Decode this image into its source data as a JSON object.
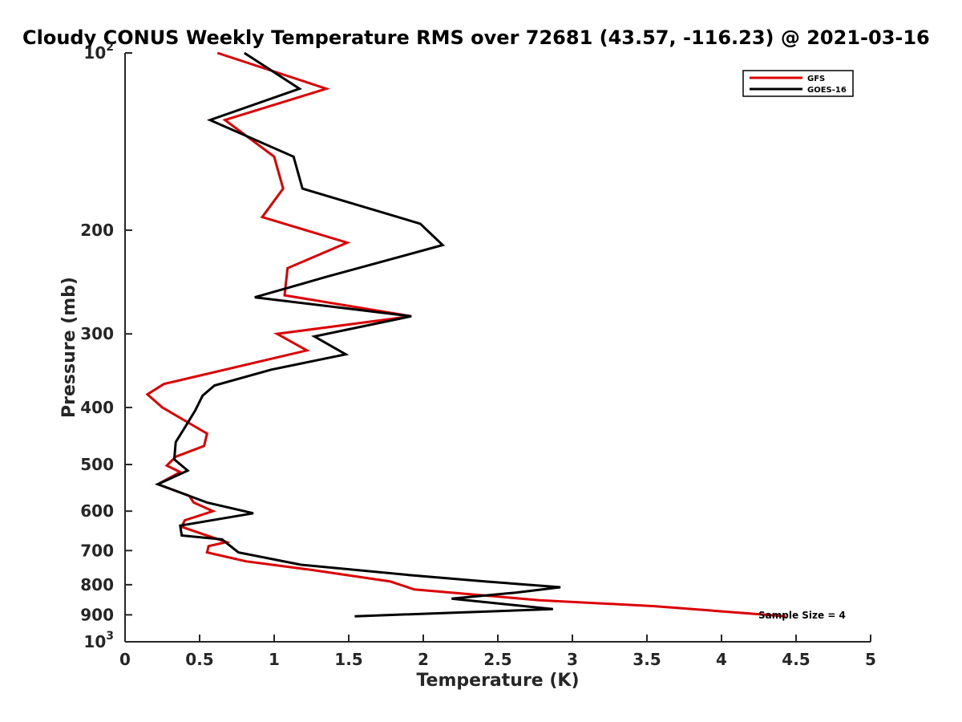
{
  "chart_data": {
    "type": "line",
    "title": "Cloudy CONUS Weekly Temperature RMS over 72681 (43.57, -116.23) @ 2021-03-16",
    "xlabel": "Temperature (K)",
    "ylabel": "Pressure (mb)",
    "xlim": [
      0,
      5
    ],
    "ylim": [
      100,
      1000
    ],
    "y_scale": "log",
    "y_reversed": true,
    "x_ticks": [
      "0",
      "0.5",
      "1",
      "1.5",
      "2",
      "2.5",
      "3",
      "3.5",
      "4",
      "4.5",
      "5"
    ],
    "y_ticks": [
      {
        "value": 100,
        "label": "10",
        "sup": "2"
      },
      {
        "value": 200,
        "label": "200"
      },
      {
        "value": 300,
        "label": "300"
      },
      {
        "value": 400,
        "label": "400"
      },
      {
        "value": 500,
        "label": "500"
      },
      {
        "value": 600,
        "label": "600"
      },
      {
        "value": 700,
        "label": "700"
      },
      {
        "value": 800,
        "label": "800"
      },
      {
        "value": 900,
        "label": "900"
      },
      {
        "value": 1000,
        "label": "10",
        "sup": "3"
      }
    ],
    "grid": false,
    "legend_position": "top-right",
    "series": [
      {
        "name": "GFS",
        "color": "#dd0000",
        "points": [
          [
            0.62,
            100
          ],
          [
            1.35,
            115
          ],
          [
            0.67,
            130
          ],
          [
            1.0,
            150
          ],
          [
            1.06,
            170
          ],
          [
            0.92,
            190
          ],
          [
            1.49,
            210
          ],
          [
            1.09,
            232
          ],
          [
            1.07,
            258
          ],
          [
            1.92,
            280
          ],
          [
            1.02,
            300
          ],
          [
            1.22,
            320
          ],
          [
            0.26,
            365
          ],
          [
            0.15,
            380
          ],
          [
            0.25,
            400
          ],
          [
            0.55,
            443
          ],
          [
            0.53,
            465
          ],
          [
            0.34,
            485
          ],
          [
            0.28,
            502
          ],
          [
            0.37,
            515
          ],
          [
            0.22,
            540
          ],
          [
            0.43,
            565
          ],
          [
            0.46,
            580
          ],
          [
            0.59,
            600
          ],
          [
            0.4,
            622
          ],
          [
            0.38,
            638
          ],
          [
            0.51,
            655
          ],
          [
            0.68,
            677
          ],
          [
            0.56,
            688
          ],
          [
            0.55,
            705
          ],
          [
            0.81,
            730
          ],
          [
            1.25,
            755
          ],
          [
            1.78,
            790
          ],
          [
            1.94,
            815
          ],
          [
            2.78,
            850
          ],
          [
            3.55,
            870
          ],
          [
            4.43,
            905
          ]
        ]
      },
      {
        "name": "GOES-16",
        "color": "#000000",
        "points": [
          [
            0.8,
            100
          ],
          [
            1.17,
            115
          ],
          [
            0.57,
            130
          ],
          [
            1.13,
            150
          ],
          [
            1.19,
            170
          ],
          [
            1.98,
            195
          ],
          [
            2.13,
            212
          ],
          [
            1.35,
            240
          ],
          [
            0.87,
            260
          ],
          [
            1.92,
            280
          ],
          [
            1.27,
            303
          ],
          [
            1.48,
            325
          ],
          [
            0.98,
            345
          ],
          [
            0.6,
            367
          ],
          [
            0.52,
            382
          ],
          [
            0.47,
            405
          ],
          [
            0.4,
            433
          ],
          [
            0.34,
            458
          ],
          [
            0.33,
            490
          ],
          [
            0.42,
            512
          ],
          [
            0.22,
            540
          ],
          [
            0.55,
            580
          ],
          [
            0.86,
            605
          ],
          [
            0.37,
            635
          ],
          [
            0.38,
            660
          ],
          [
            0.65,
            670
          ],
          [
            0.76,
            705
          ],
          [
            1.18,
            740
          ],
          [
            1.9,
            770
          ],
          [
            2.42,
            790
          ],
          [
            2.92,
            808
          ],
          [
            2.62,
            825
          ],
          [
            2.19,
            845
          ],
          [
            2.87,
            880
          ],
          [
            1.54,
            905
          ]
        ]
      }
    ],
    "annotation": "Sample Size = 4"
  }
}
